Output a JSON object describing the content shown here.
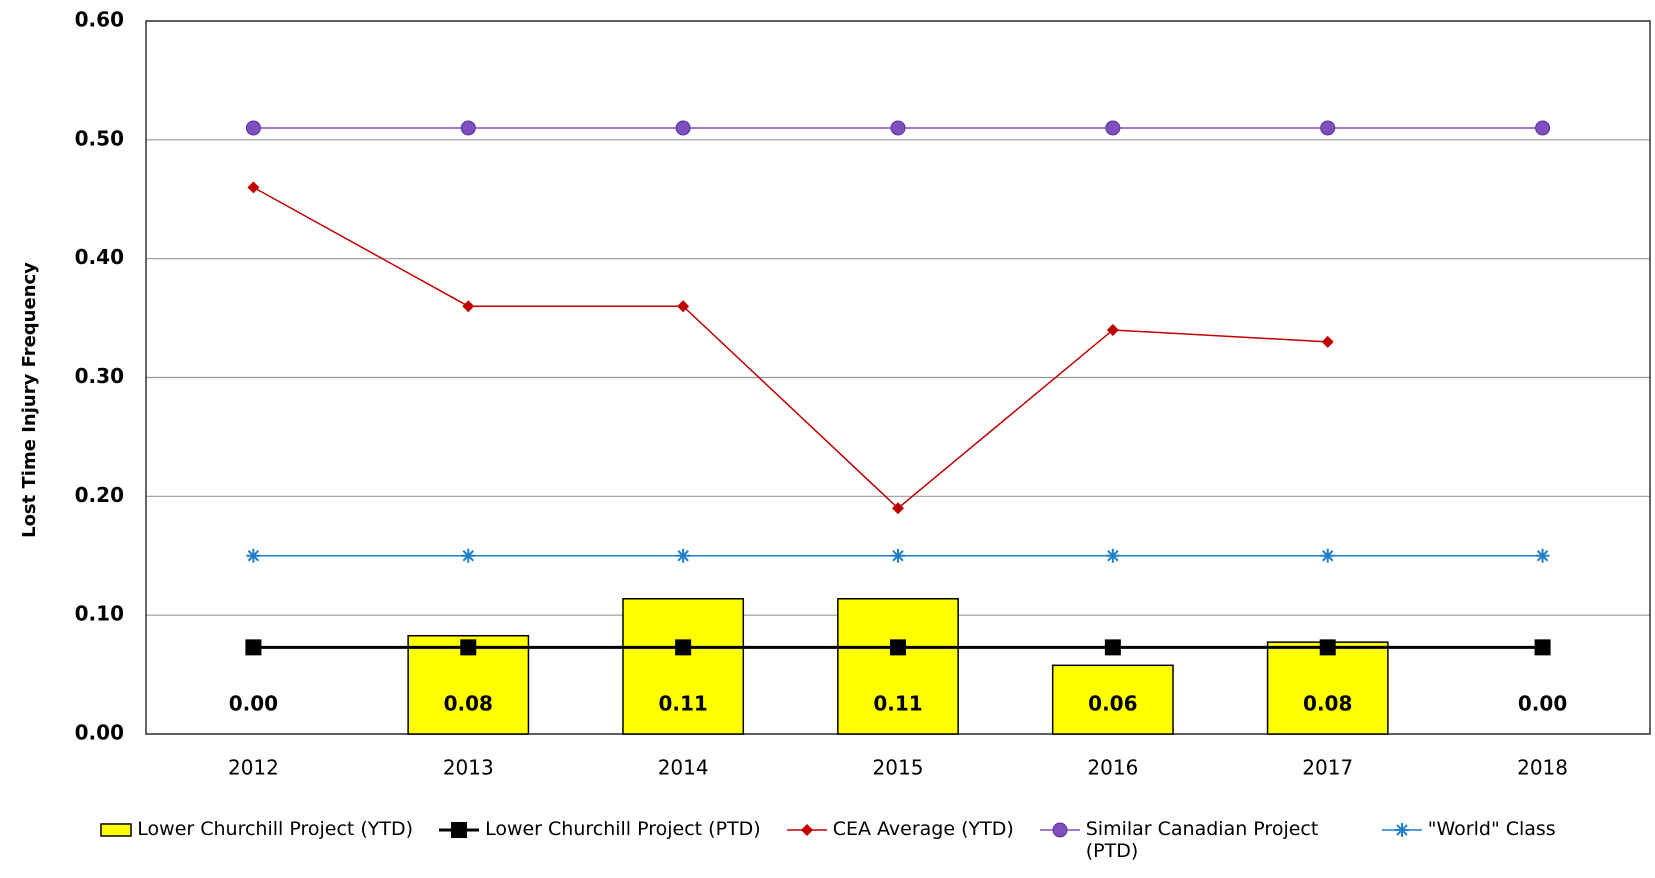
{
  "chart_data": {
    "type": "bar",
    "y_label": "Lost Time Injury Frequency",
    "categories": [
      "2012",
      "2013",
      "2014",
      "2015",
      "2016",
      "2017",
      "2018"
    ],
    "series": [
      {
        "name": "Lower Churchill Project (YTD)",
        "type": "bar",
        "color": "#ffff00",
        "values": [
          0,
          0.0827,
          0.1138,
          0.1138,
          0.0578,
          0.0773,
          0
        ],
        "value_labels": [
          "0.00",
          "0.08",
          "0.11",
          "0.11",
          "0.06",
          "0.08",
          "0.00"
        ]
      },
      {
        "name": "Lower Churchill Project (PTD)",
        "type": "line",
        "marker": "square",
        "color": "#000000",
        "values": [
          0.0729,
          0.0729,
          0.0729,
          0.0729,
          0.0729,
          0.0729,
          0.0729
        ]
      },
      {
        "name": "CEA Average (YTD)",
        "type": "line",
        "marker": "diamond",
        "color": "#c00000",
        "values": [
          0.46,
          0.36,
          0.36,
          0.19,
          0.34,
          0.33,
          null
        ]
      },
      {
        "name": "Similar Canadian Project (PTD)",
        "type": "line",
        "marker": "circle",
        "color": "#7f4fbf",
        "values": [
          0.51,
          0.51,
          0.51,
          0.51,
          0.51,
          0.51,
          0.51
        ]
      },
      {
        "name": "\"World\" Class",
        "type": "line",
        "marker": "star",
        "color": "#1f7fc8",
        "values": [
          0.15,
          0.15,
          0.15,
          0.15,
          0.15,
          0.15,
          0.15
        ]
      }
    ],
    "ylim": [
      0,
      0.6
    ],
    "yticks": [
      {
        "value": 0,
        "label": "0.00"
      },
      {
        "value": 0.1,
        "label": "0.10"
      },
      {
        "value": 0.2,
        "label": "0.20"
      },
      {
        "value": 0.3,
        "label": "0.30"
      },
      {
        "value": 0.4,
        "label": "0.40"
      },
      {
        "value": 0.5,
        "label": "0.50"
      },
      {
        "value": 0.6,
        "label": "0.60"
      }
    ],
    "grid": true,
    "legend": "bottom"
  }
}
